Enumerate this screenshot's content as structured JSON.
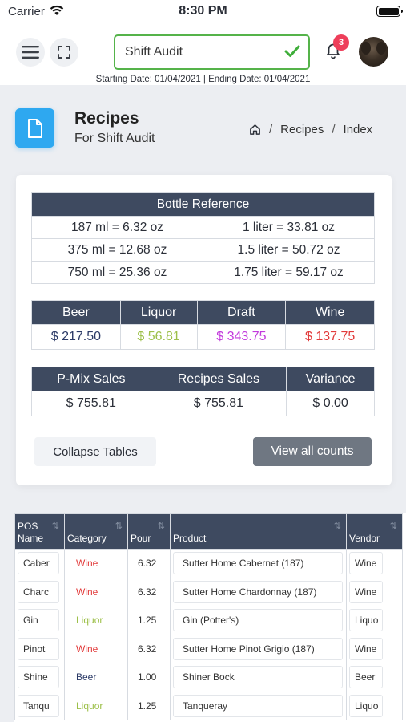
{
  "status_bar": {
    "carrier": "Carrier",
    "time": "8:30 PM"
  },
  "header": {
    "audit_name": "Shift Audit",
    "notification_count": "3",
    "date_range": "Starting Date: 01/04/2021 | Ending Date: 01/04/2021"
  },
  "page": {
    "title": "Recipes",
    "subtitle": "For Shift Audit",
    "breadcrumb": [
      "Recipes",
      "Index"
    ]
  },
  "bottle_reference": {
    "title": "Bottle Reference",
    "rows": [
      [
        "187 ml = 6.32 oz",
        "1 liter = 33.81 oz"
      ],
      [
        "375 ml = 12.68 oz",
        "1.5 liter = 50.72 oz"
      ],
      [
        "750 ml = 25.36 oz",
        "1.75 liter = 59.17 oz"
      ]
    ]
  },
  "categories": {
    "headers": [
      "Beer",
      "Liquor",
      "Draft",
      "Wine"
    ],
    "values": [
      "$ 217.50",
      "$ 56.81",
      "$ 343.75",
      "$ 137.75"
    ],
    "colors": [
      "#2b3a67",
      "#9dc04a",
      "#c23adc",
      "#e23b3b"
    ]
  },
  "sales": {
    "headers": [
      "P-Mix Sales",
      "Recipes Sales",
      "Variance"
    ],
    "values": [
      "$ 755.81",
      "$ 755.81",
      "$ 0.00"
    ]
  },
  "buttons": {
    "collapse": "Collapse Tables",
    "view_counts": "View all counts"
  },
  "recipes": {
    "headers": [
      "POS Name",
      "Category",
      "Pour",
      "Product",
      "Vendor"
    ],
    "category_colors": {
      "Wine": "#e23b3b",
      "Liquor": "#9dc04a",
      "Beer": "#2b3a67"
    },
    "rows": [
      {
        "name": "Caber",
        "category": "Wine",
        "pour": "6.32",
        "product": "Sutter Home Cabernet (187)",
        "vendor": "Wine"
      },
      {
        "name": "Charc",
        "category": "Wine",
        "pour": "6.32",
        "product": "Sutter Home Chardonnay (187)",
        "vendor": "Wine"
      },
      {
        "name": "Gin",
        "category": "Liquor",
        "pour": "1.25",
        "product": "Gin (Potter's)",
        "vendor": "Liquo"
      },
      {
        "name": "Pinot",
        "category": "Wine",
        "pour": "6.32",
        "product": "Sutter Home Pinot Grigio (187)",
        "vendor": "Wine"
      },
      {
        "name": "Shine",
        "category": "Beer",
        "pour": "1.00",
        "product": "Shiner Bock",
        "vendor": "Beer"
      },
      {
        "name": "Tanqu",
        "category": "Liquor",
        "pour": "1.25",
        "product": "Tanqueray",
        "vendor": "Liquo"
      }
    ]
  }
}
